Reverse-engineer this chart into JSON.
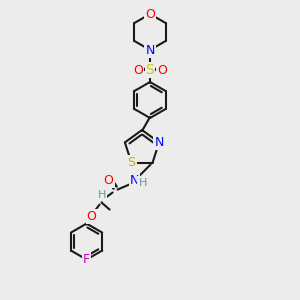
{
  "bg_color": "#ececec",
  "bond_color": "#1a1a1a",
  "atom_colors": {
    "O": "#ff0000",
    "N": "#0000ff",
    "S_sulfonyl": "#cccc00",
    "S_thiazole": "#ccaa00",
    "F": "#cc00cc",
    "H": "#669999",
    "C": "#1a1a1a"
  },
  "font_size": 8,
  "lw": 1.5
}
